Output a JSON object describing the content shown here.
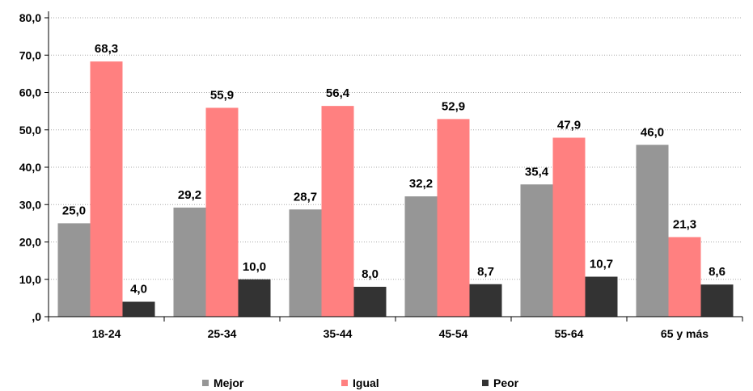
{
  "chart_data": {
    "type": "bar",
    "categories": [
      "18-24",
      "25-34",
      "35-44",
      "45-54",
      "55-64",
      "65 y más"
    ],
    "series": [
      {
        "name": "Mejor",
        "values": [
          25.0,
          29.2,
          28.7,
          32.2,
          35.4,
          46.0
        ],
        "color": "#969696"
      },
      {
        "name": "Igual",
        "values": [
          68.3,
          55.9,
          56.4,
          52.9,
          47.9,
          21.3
        ],
        "color": "#ff8080"
      },
      {
        "name": "Peor",
        "values": [
          4.0,
          10.0,
          8.0,
          8.7,
          10.7,
          8.6
        ],
        "color": "#333333"
      }
    ],
    "ylim": [
      0,
      80
    ],
    "yticks": [
      0,
      10,
      20,
      30,
      40,
      50,
      60,
      70,
      80
    ],
    "ytick_labels": [
      ",0",
      "10,0",
      "20,0",
      "30,0",
      "40,0",
      "50,0",
      "60,0",
      "70,0",
      "80,0"
    ],
    "data_labels": [
      [
        "25,0",
        "29,2",
        "28,7",
        "32,2",
        "35,4",
        "46,0"
      ],
      [
        "68,3",
        "55,9",
        "56,4",
        "52,9",
        "47,9",
        "21,3"
      ],
      [
        "4,0",
        "10,0",
        "8,0",
        "8,7",
        "10,7",
        "8,6"
      ]
    ],
    "grid": true,
    "legend_position": "bottom"
  }
}
